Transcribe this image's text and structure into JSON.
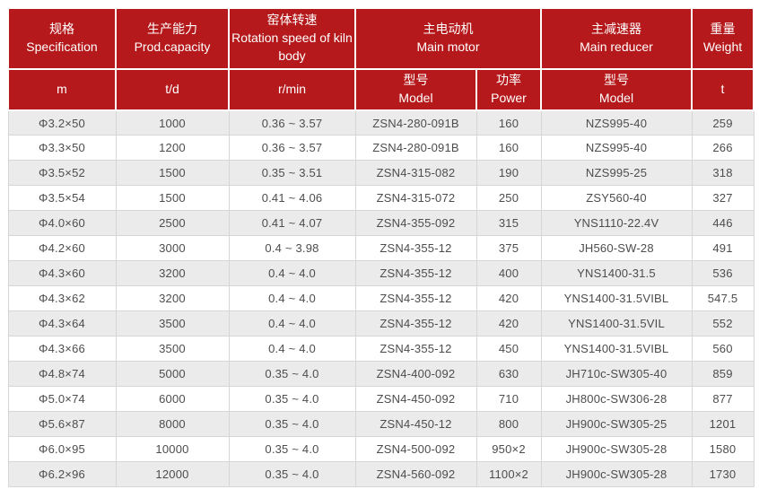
{
  "colors": {
    "header_bg": "#b5191b",
    "header_text": "#ffffff",
    "stripe_bg": "#ebebeb",
    "row_bg": "#ffffff",
    "border": "#d6d6d6",
    "body_text": "#4d4d4d"
  },
  "table": {
    "header_row1": [
      {
        "zh": "规格",
        "en": "Specification"
      },
      {
        "zh": "生产能力",
        "en": "Prod.capacity"
      },
      {
        "zh": "窑体转速",
        "en": "Rotation speed of kiln body"
      },
      {
        "zh": "主电动机",
        "en": "Main motor"
      },
      {
        "zh": "主减速器",
        "en": "Main reducer"
      },
      {
        "zh": "重量",
        "en": "Weight"
      }
    ],
    "header_row2": [
      {
        "line1": "m",
        "line2": ""
      },
      {
        "line1": "t/d",
        "line2": ""
      },
      {
        "line1": "r/min",
        "line2": ""
      },
      {
        "line1": "型号",
        "line2": "Model"
      },
      {
        "line1": "功率",
        "line2": "Power"
      },
      {
        "line1": "型号",
        "line2": "Model"
      },
      {
        "line1": "t",
        "line2": ""
      }
    ],
    "rows": [
      [
        "Φ3.2×50",
        "1000",
        "0.36 ~ 3.57",
        "ZSN4-280-091B",
        "160",
        "NZS995-40",
        "259"
      ],
      [
        "Φ3.3×50",
        "1200",
        "0.36 ~ 3.57",
        "ZSN4-280-091B",
        "160",
        "NZS995-40",
        "266"
      ],
      [
        "Φ3.5×52",
        "1500",
        "0.35 ~ 3.51",
        "ZSN4-315-082",
        "190",
        "NZS995-25",
        "318"
      ],
      [
        "Φ3.5×54",
        "1500",
        "0.41 ~ 4.06",
        "ZSN4-315-072",
        "250",
        "ZSY560-40",
        "327"
      ],
      [
        "Φ4.0×60",
        "2500",
        "0.41 ~ 4.07",
        "ZSN4-355-092",
        "315",
        "YNS1110-22.4V",
        "446"
      ],
      [
        "Φ4.2×60",
        "3000",
        "0.4 ~ 3.98",
        "ZSN4-355-12",
        "375",
        "JH560-SW-28",
        "491"
      ],
      [
        "Φ4.3×60",
        "3200",
        "0.4 ~ 4.0",
        "ZSN4-355-12",
        "400",
        "YNS1400-31.5",
        "536"
      ],
      [
        "Φ4.3×62",
        "3200",
        "0.4 ~ 4.0",
        "ZSN4-355-12",
        "420",
        "YNS1400-31.5VIBL",
        "547.5"
      ],
      [
        "Φ4.3×64",
        "3500",
        "0.4 ~ 4.0",
        "ZSN4-355-12",
        "420",
        "YNS1400-31.5VIL",
        "552"
      ],
      [
        "Φ4.3×66",
        "3500",
        "0.4 ~ 4.0",
        "ZSN4-355-12",
        "450",
        "YNS1400-31.5VIBL",
        "560"
      ],
      [
        "Φ4.8×74",
        "5000",
        "0.35 ~ 4.0",
        "ZSN4-400-092",
        "630",
        "JH710c-SW305-40",
        "859"
      ],
      [
        "Φ5.0×74",
        "6000",
        "0.35 ~ 4.0",
        "ZSN4-450-092",
        "710",
        "JH800c-SW306-28",
        "877"
      ],
      [
        "Φ5.6×87",
        "8000",
        "0.35 ~ 4.0",
        "ZSN4-450-12",
        "800",
        "JH900c-SW305-25",
        "1201"
      ],
      [
        "Φ6.0×95",
        "10000",
        "0.35 ~ 4.0",
        "ZSN4-500-092",
        "950×2",
        "JH900c-SW305-28",
        "1580"
      ],
      [
        "Φ6.2×96",
        "12000",
        "0.35 ~ 4.0",
        "ZSN4-560-092",
        "1100×2",
        "JH900c-SW305-28",
        "1730"
      ]
    ]
  }
}
